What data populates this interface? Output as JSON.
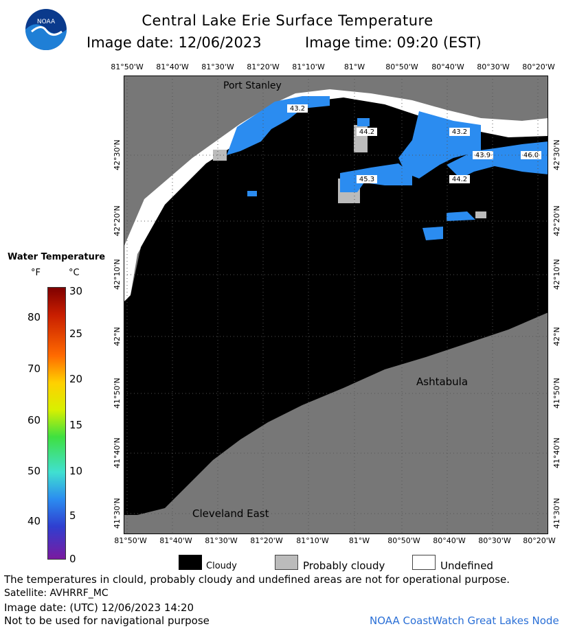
{
  "header": {
    "title": "Central Lake Erie Surface Temperature",
    "image_date": "Image date: 12/06/2023",
    "image_time": "Image time: 09:20 (EST)"
  },
  "logo": {
    "text": "NOAA"
  },
  "longitudes": [
    "81°50'W",
    "81°40'W",
    "81°30'W",
    "81°20'W",
    "81°10'W",
    "81°W",
    "80°50'W",
    "80°40'W",
    "80°30'W",
    "80°20'W"
  ],
  "latitudes": [
    "42°30'N",
    "42°20'N",
    "42°10'N",
    "42°N",
    "41°50'N",
    "41°40'N",
    "41°30'N"
  ],
  "places": {
    "north": "Port Stanley",
    "east": "Ashtabula",
    "west": "Cleveland East"
  },
  "temps": [
    "43.2",
    "44.2",
    "43.2",
    "43.9",
    "46.0",
    "45.3",
    "44.2"
  ],
  "colorbar": {
    "heading": "Water Temperature",
    "unit_f": "°F",
    "unit_c": "°C",
    "f_ticks": [
      "80",
      "70",
      "60",
      "50",
      "40"
    ],
    "c_ticks": [
      "30",
      "25",
      "20",
      "15",
      "10",
      "5",
      "0"
    ]
  },
  "legend": {
    "cloudy": "Cloudy",
    "probably": "Probably cloudy",
    "undefined": "Undefined"
  },
  "footer": {
    "disclaimer": "The temperatures in clould, probably cloudy and undefined areas are not for operational purpose.",
    "satellite": "Satellite: AVHRRF_MC",
    "utc": "Image date: (UTC) 12/06/2023  14:20",
    "nav": "Not to be used for navigational purpose",
    "credit": "NOAA CoastWatch Great Lakes Node"
  },
  "colors": {
    "land": "#777777",
    "cloud": "#000000",
    "probable": "#bbbbbb",
    "water": "#2b8cf0"
  }
}
